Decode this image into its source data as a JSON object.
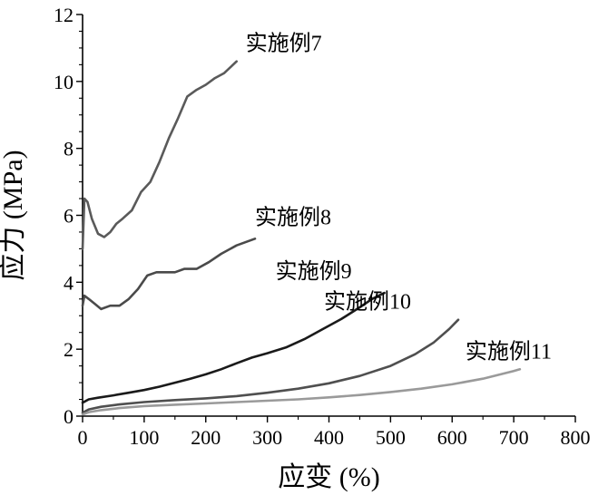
{
  "chart_data": {
    "type": "line",
    "title": "",
    "xlabel": "应变 (%)",
    "ylabel": "应力 (MPa)",
    "xlim": [
      0,
      800
    ],
    "ylim": [
      0,
      12
    ],
    "x_ticks": [
      "0",
      "100",
      "200",
      "300",
      "400",
      "500",
      "600",
      "700",
      "800"
    ],
    "y_ticks": [
      "0",
      "2",
      "4",
      "6",
      "8",
      "10",
      "12"
    ],
    "grid": false,
    "legend": "none (labels placed next to curves)",
    "series": [
      {
        "name": "实施例7",
        "color": "#5a5a5a",
        "x": [
          0,
          3,
          8,
          15,
          25,
          35,
          45,
          55,
          65,
          80,
          95,
          110,
          125,
          140,
          155,
          170,
          185,
          200,
          215,
          230,
          250
        ],
        "y": [
          5.0,
          6.5,
          6.4,
          5.9,
          5.45,
          5.35,
          5.5,
          5.75,
          5.9,
          6.15,
          6.7,
          7.0,
          7.6,
          8.3,
          8.9,
          9.55,
          9.75,
          9.9,
          10.1,
          10.25,
          10.6
        ]
      },
      {
        "name": "实施例8",
        "color": "#4a4a4a",
        "x": [
          0,
          3,
          10,
          20,
          30,
          45,
          60,
          75,
          90,
          105,
          120,
          135,
          150,
          165,
          185,
          205,
          225,
          250,
          280
        ],
        "y": [
          3.3,
          3.6,
          3.5,
          3.35,
          3.2,
          3.3,
          3.3,
          3.5,
          3.8,
          4.2,
          4.3,
          4.3,
          4.3,
          4.4,
          4.4,
          4.6,
          4.85,
          5.1,
          5.3
        ]
      },
      {
        "name": "实施例9",
        "color": "#1a1a1a",
        "x": [
          0,
          10,
          25,
          50,
          75,
          100,
          125,
          150,
          175,
          200,
          225,
          250,
          275,
          300,
          330,
          360,
          390,
          420,
          450,
          470,
          490
        ],
        "y": [
          0.4,
          0.5,
          0.55,
          0.62,
          0.7,
          0.78,
          0.88,
          1.0,
          1.12,
          1.25,
          1.4,
          1.58,
          1.75,
          1.88,
          2.05,
          2.3,
          2.6,
          2.9,
          3.25,
          3.5,
          3.68
        ]
      },
      {
        "name": "实施例10",
        "color": "#4f4f4f",
        "x": [
          0,
          10,
          30,
          60,
          100,
          150,
          200,
          250,
          300,
          350,
          400,
          450,
          500,
          540,
          570,
          595,
          610
        ],
        "y": [
          0.1,
          0.2,
          0.28,
          0.35,
          0.42,
          0.48,
          0.53,
          0.6,
          0.7,
          0.82,
          0.98,
          1.2,
          1.5,
          1.85,
          2.2,
          2.6,
          2.88
        ]
      },
      {
        "name": "实施例11",
        "color": "#9a9a9a",
        "x": [
          0,
          10,
          30,
          60,
          100,
          150,
          200,
          250,
          300,
          350,
          400,
          450,
          500,
          550,
          600,
          650,
          700,
          710
        ],
        "y": [
          0.05,
          0.12,
          0.18,
          0.24,
          0.3,
          0.34,
          0.38,
          0.42,
          0.46,
          0.5,
          0.56,
          0.63,
          0.72,
          0.82,
          0.95,
          1.12,
          1.35,
          1.4
        ]
      }
    ],
    "annotations": [
      "实施例7",
      "实施例8",
      "实施例9",
      "实施例10",
      "实施例11"
    ]
  }
}
